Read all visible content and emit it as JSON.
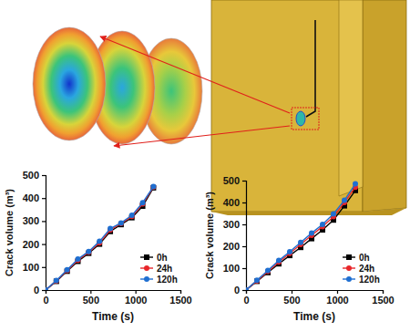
{
  "chart_data": [
    {
      "type": "line",
      "x_label": "Time (s)",
      "y_label": "Crack volume (m³)",
      "x": [
        0,
        120,
        240,
        360,
        480,
        600,
        720,
        840,
        960,
        1080,
        1200
      ],
      "series": [
        {
          "name": "0h",
          "color": "#000000",
          "marker": "square",
          "values": [
            0,
            38,
            82,
            125,
            160,
            200,
            255,
            285,
            315,
            365,
            445
          ]
        },
        {
          "name": "24h",
          "color": "#e8262a",
          "marker": "circle",
          "values": [
            0,
            40,
            85,
            130,
            165,
            205,
            262,
            290,
            320,
            375,
            448
          ]
        },
        {
          "name": "120h",
          "color": "#1f6fd1",
          "marker": "circle",
          "values": [
            0,
            42,
            88,
            135,
            168,
            212,
            268,
            292,
            325,
            380,
            450
          ]
        }
      ],
      "xlim": [
        0,
        1500
      ],
      "xticks": [
        0,
        500,
        1000,
        1500
      ],
      "ylim": [
        0,
        500
      ],
      "yticks": [
        0,
        100,
        200,
        300,
        400,
        500
      ],
      "legend": "lower right",
      "grid": false
    },
    {
      "type": "line",
      "x_label": "Time (s)",
      "y_label": "Crack volume (m³)",
      "x": [
        0,
        120,
        240,
        360,
        480,
        600,
        720,
        840,
        960,
        1080,
        1200
      ],
      "series": [
        {
          "name": "0h",
          "color": "#000000",
          "marker": "square",
          "values": [
            0,
            40,
            80,
            120,
            158,
            195,
            235,
            275,
            320,
            385,
            455
          ]
        },
        {
          "name": "24h",
          "color": "#e8262a",
          "marker": "circle",
          "values": [
            0,
            42,
            85,
            128,
            168,
            208,
            250,
            290,
            335,
            400,
            470
          ]
        },
        {
          "name": "120h",
          "color": "#1f6fd1",
          "marker": "circle",
          "values": [
            0,
            45,
            90,
            135,
            175,
            218,
            260,
            300,
            348,
            410,
            485
          ]
        }
      ],
      "xlim": [
        0,
        1500
      ],
      "xticks": [
        0,
        500,
        1000,
        1500
      ],
      "ylim": [
        0,
        500
      ],
      "yticks": [
        0,
        100,
        200,
        300,
        400,
        500
      ],
      "legend": "lower right",
      "grid": false
    }
  ]
}
